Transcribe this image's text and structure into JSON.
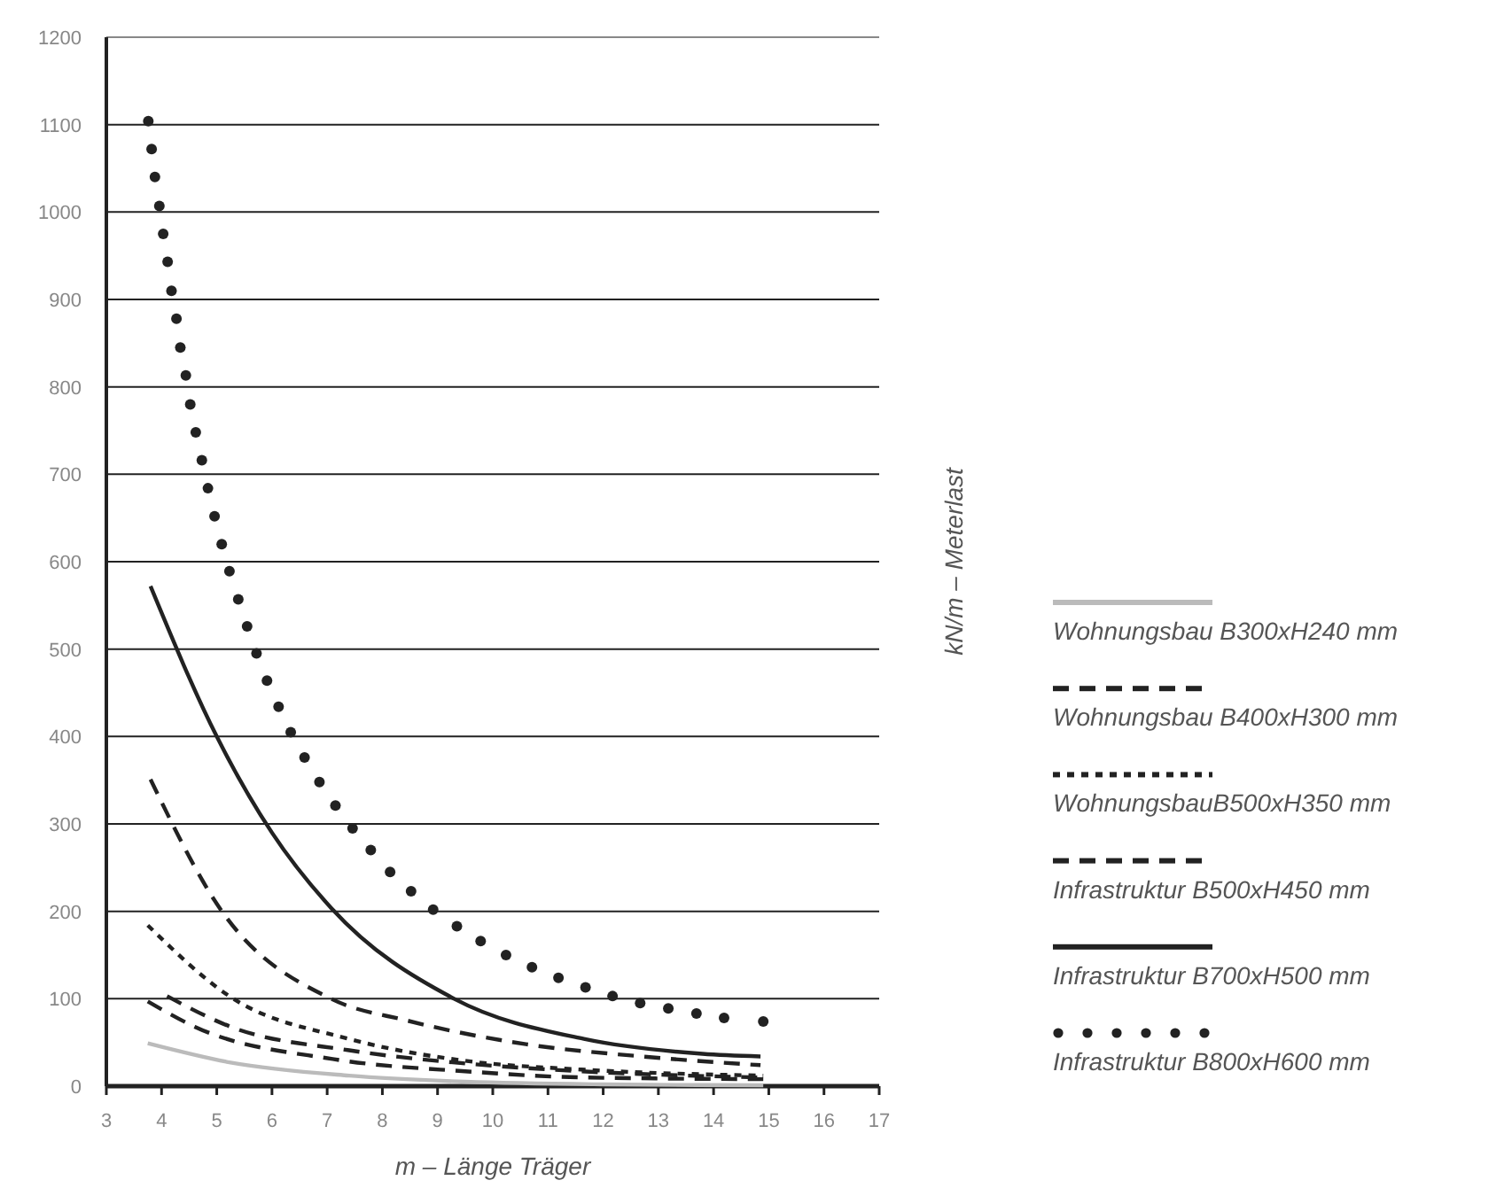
{
  "chart_data": {
    "type": "line",
    "xlabel": "m  – Länge Träger",
    "ylabel": "kN/m  – Meterlast",
    "xlim": [
      3,
      17
    ],
    "ylim": [
      0,
      1200
    ],
    "xticks": [
      3,
      4,
      5,
      6,
      7,
      8,
      9,
      10,
      11,
      12,
      13,
      14,
      15,
      16,
      17
    ],
    "yticks": [
      0,
      100,
      200,
      300,
      400,
      500,
      600,
      700,
      800,
      900,
      1000,
      1100,
      1200
    ],
    "grid": "y",
    "legend": "right",
    "marker": "none",
    "series": [
      {
        "name": "Wohnungsbau B300xH240 mm",
        "color": "#bbbbbb",
        "line_style": "solid",
        "x": [
          3.75,
          5.25,
          7.4,
          9.5,
          12,
          14.9
        ],
        "values": [
          49,
          27,
          12,
          5,
          2,
          1
        ]
      },
      {
        "name": "Wohnungsbau B400xH300 mm",
        "color": "#222222",
        "line_style": "dashed",
        "x": [
          3.75,
          4.6,
          7.1,
          9.5,
          11.6,
          14.9
        ],
        "values": [
          97,
          68,
          31,
          17,
          10,
          8
        ]
      },
      {
        "name": "WohnungsbauB500xH350 mm",
        "color": "#222222",
        "line_style": "dotted",
        "x": [
          3.75,
          5.25,
          7.4,
          9.5,
          11.6,
          14.9
        ],
        "values": [
          184,
          102,
          54,
          29,
          19,
          12
        ]
      },
      {
        "name": "Infrastruktur B500xH450 mm",
        "color": "#222222",
        "line_style": "dashed",
        "x": [
          3.8,
          5.05,
          7.07,
          8.45,
          10.6,
          12.7,
          14.85
        ],
        "values": [
          351,
          204,
          100,
          75,
          48,
          34,
          24
        ]
      },
      {
        "name": "Infrastruktur B700xH500 mm",
        "color": "#222222",
        "line_style": "solid",
        "x": [
          3.8,
          5,
          6,
          7.07,
          9.3,
          11.65,
          13.8,
          14.85
        ],
        "values": [
          572,
          400,
          290,
          204,
          100,
          54,
          37,
          34
        ]
      },
      {
        "name": "Infrastruktur B800xH600 mm",
        "color": "#222222",
        "type": "scatter",
        "marker": "circle",
        "x": [
          3.76,
          3.82,
          3.88,
          3.96,
          4.03,
          4.11,
          4.18,
          4.27,
          4.34,
          4.44,
          4.52,
          4.62,
          4.73,
          4.84,
          4.96,
          5.09,
          5.23,
          5.39,
          5.55,
          5.72,
          5.91,
          6.12,
          6.34,
          6.59,
          6.86,
          7.15,
          7.46,
          7.79,
          8.14,
          8.52,
          8.92,
          9.35,
          9.78,
          10.24,
          10.71,
          11.19,
          11.68,
          12.17,
          12.67,
          13.18,
          13.69,
          14.19,
          14.9
        ],
        "values": [
          1104,
          1072,
          1040,
          1007,
          975,
          943,
          910,
          878,
          845,
          813,
          780,
          748,
          716,
          684,
          652,
          620,
          589,
          557,
          526,
          495,
          464,
          434,
          405,
          376,
          348,
          321,
          295,
          270,
          245,
          223,
          202,
          183,
          166,
          150,
          136,
          124,
          113,
          103,
          95,
          89,
          83,
          78,
          74
        ]
      },
      {
        "color": "#222222",
        "line_style": "dashed",
        "x": [
          4.1,
          5.25,
          7.4,
          9.5,
          11.6,
          14.8
        ],
        "values": [
          103,
          68,
          41,
          26,
          17,
          10
        ]
      }
    ]
  }
}
